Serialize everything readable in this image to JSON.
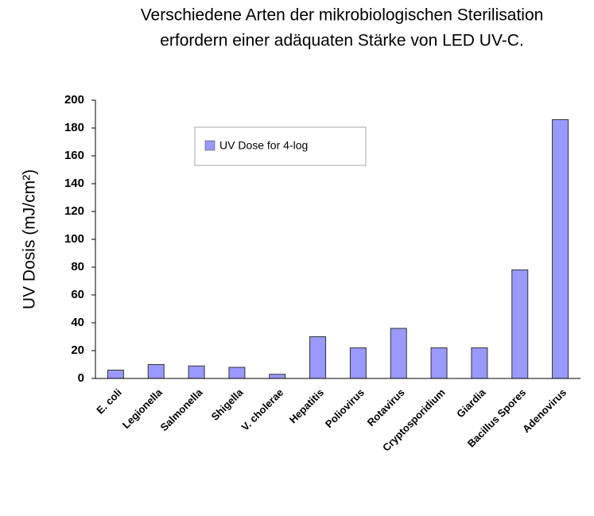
{
  "chart_data": {
    "type": "bar",
    "title": [
      "Verschiedene Arten der mikrobiologischen Sterilisation",
      "erfordern einer adäquaten Stärke von LED UV-C."
    ],
    "y_label": "UV Dosis (mJ/cm²)",
    "categories": [
      "E. coli",
      "Legionella",
      "Salmonella",
      "Shigella",
      "V. cholerae",
      "Hepatitis",
      "Poliovirus",
      "Rotavirus",
      "Cryptosporidium",
      "Giardia",
      "Bacillus Spores",
      "Adenovirus"
    ],
    "series": [
      {
        "name": "UV Dose for 4-log",
        "color": "#9999ff",
        "values": [
          6,
          10,
          9,
          8,
          3,
          30,
          22,
          36,
          22,
          22,
          78,
          186
        ]
      }
    ],
    "ylim": [
      0,
      200
    ],
    "yticks": [
      0,
      20,
      40,
      60,
      80,
      100,
      120,
      140,
      160,
      180,
      200
    ],
    "grid": false,
    "legend": "upper left"
  }
}
